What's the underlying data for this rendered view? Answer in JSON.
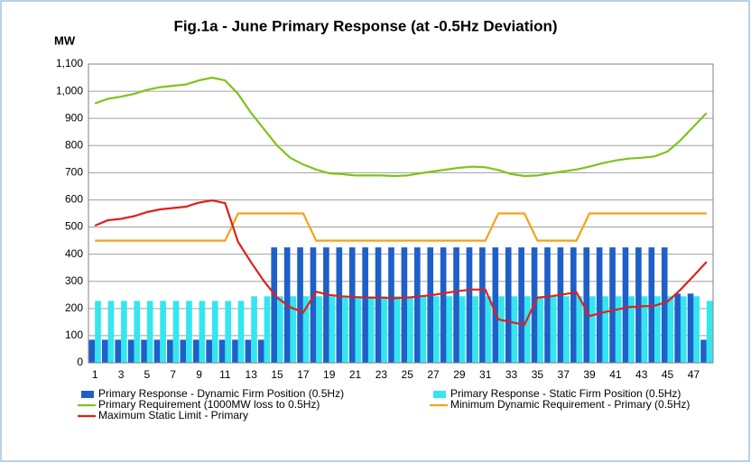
{
  "chart_data": {
    "type": "combo",
    "title": "Fig.1a - June Primary Response (at -0.5Hz Deviation)",
    "y_axis_label": "MW",
    "categories": [
      "1",
      null,
      "3",
      null,
      "5",
      null,
      "7",
      null,
      "9",
      null,
      "11",
      null,
      "13",
      null,
      "15",
      null,
      "17",
      null,
      "19",
      null,
      "21",
      null,
      "23",
      null,
      "25",
      null,
      "27",
      null,
      "29",
      null,
      "31",
      null,
      "33",
      null,
      "35",
      null,
      "37",
      null,
      "39",
      null,
      "41",
      null,
      "43",
      null,
      "45",
      null,
      "47",
      null
    ],
    "ylim": [
      0,
      1100
    ],
    "yticks": [
      0,
      100,
      200,
      300,
      400,
      500,
      600,
      700,
      800,
      900,
      {
        "value": 1000,
        "label": "1,000"
      },
      {
        "value": 1100,
        "label": "1,100"
      }
    ],
    "grid": true,
    "series": [
      {
        "name": "Primary Response - Dynamic Firm Position (0.5Hz)",
        "kind": "bar",
        "color": "#1f5fc8",
        "values": [
          85,
          85,
          85,
          85,
          85,
          85,
          85,
          85,
          85,
          85,
          85,
          85,
          85,
          85,
          425,
          425,
          425,
          425,
          425,
          425,
          425,
          425,
          425,
          425,
          425,
          425,
          425,
          425,
          425,
          425,
          425,
          425,
          425,
          425,
          425,
          425,
          425,
          425,
          425,
          425,
          425,
          425,
          425,
          425,
          425,
          255,
          255,
          85
        ]
      },
      {
        "name": "Primary Response - Static Firm Position (0.5Hz)",
        "kind": "bar",
        "color": "#33e6f0",
        "values": [
          228,
          228,
          228,
          228,
          228,
          228,
          228,
          228,
          228,
          228,
          228,
          228,
          245,
          245,
          245,
          245,
          245,
          245,
          245,
          245,
          245,
          245,
          245,
          245,
          245,
          245,
          245,
          245,
          245,
          245,
          245,
          245,
          245,
          245,
          245,
          245,
          245,
          245,
          245,
          245,
          245,
          245,
          245,
          245,
          245,
          245,
          245,
          228
        ]
      },
      {
        "name": "Primary Requirement (1000MW loss to 0.5Hz)",
        "kind": "line",
        "color": "#7fc31c",
        "values": [
          955,
          972,
          980,
          990,
          1005,
          1015,
          1020,
          1025,
          1040,
          1050,
          1040,
          990,
          920,
          860,
          800,
          755,
          730,
          712,
          698,
          695,
          690,
          690,
          690,
          688,
          690,
          698,
          705,
          712,
          718,
          722,
          720,
          710,
          695,
          688,
          690,
          698,
          705,
          712,
          722,
          735,
          745,
          752,
          755,
          760,
          778,
          820,
          870,
          920
        ]
      },
      {
        "name": "Minimum Dynamic Requirement - Primary  (0.5Hz)",
        "kind": "line",
        "color": "#f7a11a",
        "values": [
          450,
          450,
          450,
          450,
          450,
          450,
          450,
          450,
          450,
          450,
          450,
          550,
          550,
          550,
          550,
          550,
          550,
          450,
          450,
          450,
          450,
          450,
          450,
          450,
          450,
          450,
          450,
          450,
          450,
          450,
          450,
          550,
          550,
          550,
          450,
          450,
          450,
          450,
          550,
          550,
          550,
          550,
          550,
          550,
          550,
          550,
          550,
          550
        ]
      },
      {
        "name": "Maximum Static Limit - Primary",
        "kind": "line",
        "color": "#e0201c",
        "values": [
          505,
          525,
          530,
          540,
          555,
          565,
          570,
          575,
          590,
          598,
          588,
          445,
          370,
          300,
          240,
          205,
          185,
          262,
          250,
          245,
          242,
          240,
          240,
          238,
          240,
          245,
          250,
          258,
          265,
          270,
          270,
          160,
          150,
          140,
          240,
          245,
          252,
          260,
          172,
          185,
          195,
          205,
          208,
          210,
          225,
          270,
          320,
          372
        ]
      }
    ]
  }
}
